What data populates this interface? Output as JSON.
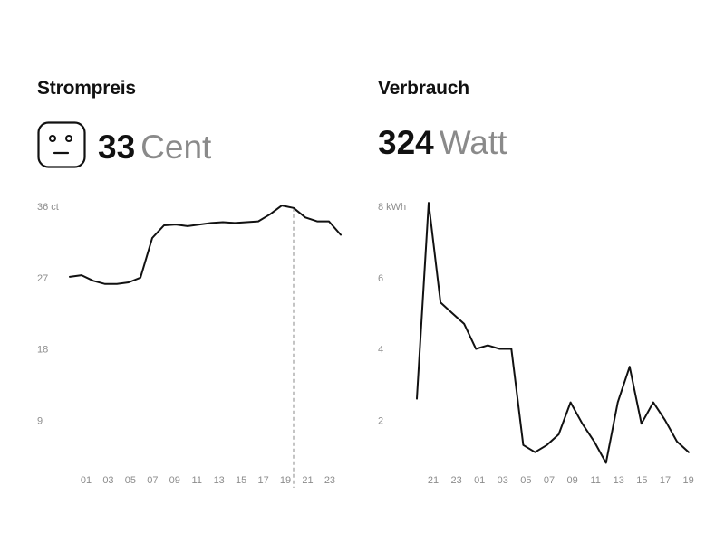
{
  "price": {
    "title": "Strompreis",
    "value": "33",
    "unit": "Cent",
    "icon": "neutral-face-icon"
  },
  "usage": {
    "title": "Verbrauch",
    "value": "324",
    "unit": "Watt"
  },
  "chart_data": [
    {
      "type": "line",
      "yunit": "ct",
      "ylim": [
        0,
        36
      ],
      "yticks": [
        9,
        18,
        27,
        36
      ],
      "ytick_labels": [
        "9",
        "18",
        "27",
        "36 ct"
      ],
      "xtick_labels": [
        "01",
        "03",
        "05",
        "07",
        "09",
        "11",
        "13",
        "15",
        "17",
        "19",
        "21",
        "23"
      ],
      "x": [
        0,
        1,
        2,
        3,
        4,
        5,
        6,
        7,
        8,
        9,
        10,
        11,
        12,
        13,
        14,
        15,
        16,
        17,
        18,
        19,
        20,
        21,
        22,
        23
      ],
      "values": [
        27.1,
        27.3,
        26.6,
        26.2,
        26.2,
        26.4,
        27.0,
        32.0,
        33.6,
        33.7,
        33.5,
        33.7,
        33.9,
        34.0,
        33.9,
        34.0,
        34.1,
        35.0,
        36.1,
        35.8,
        34.6,
        34.1,
        34.1,
        32.4
      ],
      "marker_index": 19,
      "grid": false
    },
    {
      "type": "line",
      "yunit": "kWh",
      "ylim": [
        0,
        8
      ],
      "yticks": [
        2,
        4,
        6,
        8
      ],
      "ytick_labels": [
        "2",
        "4",
        "6",
        "8 kWh"
      ],
      "xtick_labels": [
        "21",
        "23",
        "01",
        "03",
        "05",
        "07",
        "09",
        "11",
        "13",
        "15",
        "17",
        "19"
      ],
      "x": [
        0,
        1,
        2,
        3,
        4,
        5,
        6,
        7,
        8,
        9,
        10,
        11,
        12,
        13,
        14,
        15,
        16,
        17,
        18,
        19,
        20,
        21,
        22,
        23
      ],
      "values": [
        2.6,
        8.1,
        5.3,
        5.0,
        4.7,
        4.0,
        4.1,
        4.0,
        4.0,
        1.3,
        1.1,
        1.3,
        1.6,
        2.5,
        1.9,
        1.4,
        0.8,
        2.5,
        3.5,
        1.9,
        2.5,
        2.0,
        1.4,
        1.1
      ],
      "grid": false
    }
  ]
}
